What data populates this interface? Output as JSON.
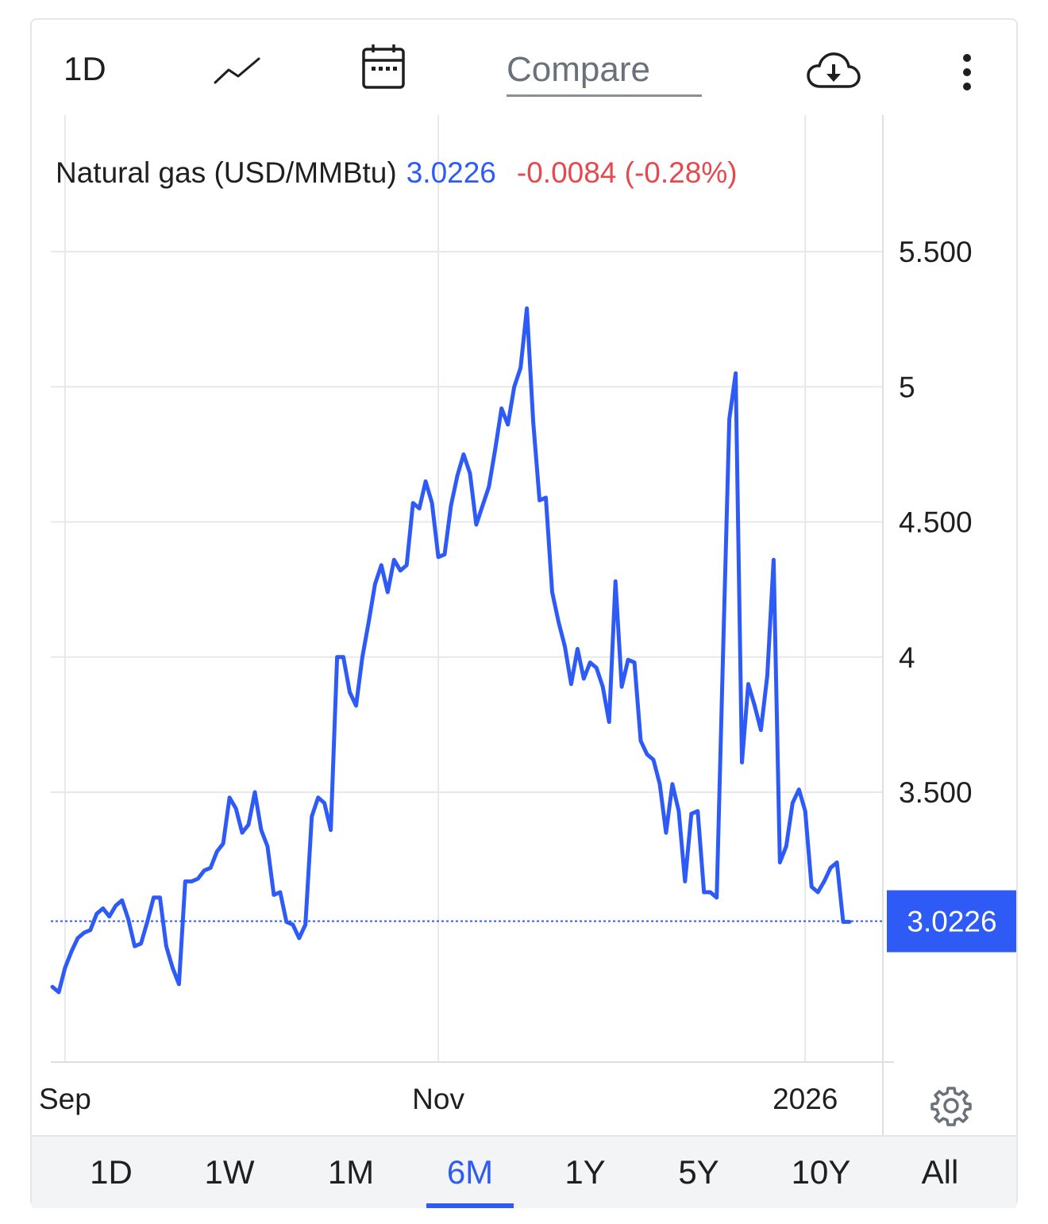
{
  "toolbar": {
    "interval_label": "1D",
    "chart_type_icon": "line-chart-icon",
    "calendar_icon": "calendar-icon",
    "compare_placeholder": "Compare",
    "download_icon": "cloud-download-icon",
    "menu_icon": "more-vertical-icon"
  },
  "legend": {
    "name": "Natural gas (USD/MMBtu)",
    "price": "3.0226",
    "change": "-0.0084 (-0.28%)"
  },
  "last_price_label": "3.0226",
  "colors": {
    "line": "#2e5bf6",
    "change_negative": "#e5484d",
    "grid": "#e6e8eb"
  },
  "range_tabs": [
    {
      "label": "1D",
      "active": false
    },
    {
      "label": "1W",
      "active": false
    },
    {
      "label": "1M",
      "active": false
    },
    {
      "label": "6M",
      "active": true
    },
    {
      "label": "1Y",
      "active": false
    },
    {
      "label": "5Y",
      "active": false
    },
    {
      "label": "10Y",
      "active": false
    },
    {
      "label": "All",
      "active": false
    }
  ],
  "settings_icon": "gear-icon",
  "chart_data": {
    "type": "line",
    "title": "Natural gas (USD/MMBtu)",
    "y_ticks": [
      "5.500",
      "5",
      "4.500",
      "4",
      "3.500"
    ],
    "y_tick_values": [
      5.5,
      5.0,
      4.5,
      4.0,
      3.5
    ],
    "ylim": [
      2.5,
      5.9
    ],
    "x_ticks": [
      "Sep",
      "Nov",
      "2026"
    ],
    "x_tick_index": [
      2,
      61,
      119
    ],
    "grid": true,
    "last_value": 3.0226,
    "series": [
      {
        "values": [
          2.78,
          2.76,
          2.85,
          2.91,
          2.96,
          2.98,
          2.99,
          3.05,
          3.07,
          3.04,
          3.08,
          3.1,
          3.03,
          2.93,
          2.94,
          3.02,
          3.11,
          3.11,
          2.93,
          2.85,
          2.79,
          3.17,
          3.17,
          3.18,
          3.21,
          3.22,
          3.28,
          3.31,
          3.48,
          3.44,
          3.35,
          3.38,
          3.5,
          3.36,
          3.3,
          3.12,
          3.13,
          3.02,
          3.01,
          2.96,
          3.01,
          3.41,
          3.48,
          3.46,
          3.36,
          4.0,
          4.0,
          3.87,
          3.82,
          4.0,
          4.13,
          4.27,
          4.34,
          4.24,
          4.36,
          4.32,
          4.34,
          4.57,
          4.55,
          4.65,
          4.57,
          4.37,
          4.38,
          4.56,
          4.67,
          4.75,
          4.68,
          4.49,
          4.56,
          4.63,
          4.77,
          4.92,
          4.86,
          5.0,
          5.07,
          5.29,
          4.87,
          4.58,
          4.59,
          4.24,
          4.13,
          4.04,
          3.9,
          4.03,
          3.92,
          3.98,
          3.96,
          3.89,
          3.76,
          4.28,
          3.89,
          3.99,
          3.98,
          3.69,
          3.64,
          3.62,
          3.53,
          3.35,
          3.53,
          3.43,
          3.17,
          3.42,
          3.43,
          3.13,
          3.13,
          3.11,
          4.0,
          4.88,
          5.05,
          3.61,
          3.9,
          3.82,
          3.73,
          3.93,
          4.36,
          3.24,
          3.3,
          3.46,
          3.51,
          3.43,
          3.15,
          3.13,
          3.17,
          3.22,
          3.24,
          3.02,
          3.02
        ]
      }
    ]
  }
}
